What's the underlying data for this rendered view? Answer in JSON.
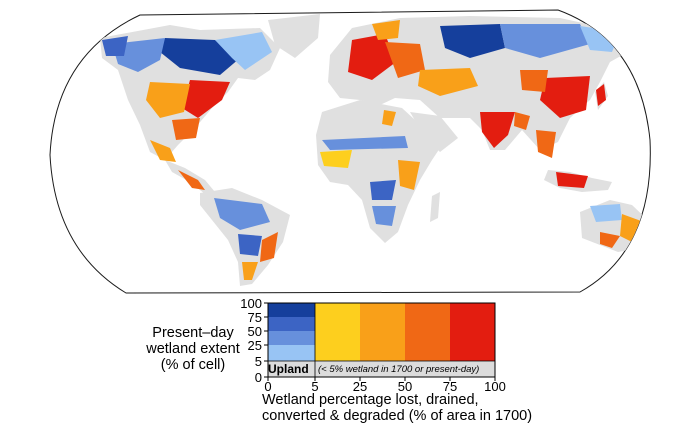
{
  "legend": {
    "y_title_lines": [
      "Present–day",
      "wetland extent",
      "(% of cell)"
    ],
    "y_ticks": [
      "100",
      "75",
      "50",
      "25",
      "5",
      "0"
    ],
    "x_ticks": [
      "0",
      "5",
      "25",
      "50",
      "75",
      "100"
    ],
    "x_title_lines": [
      "Wetland percentage lost, drained,",
      "converted & degraded  (% of area in 1700)"
    ],
    "upland_label": "Upland",
    "upland_note": "(< 5% wetland in 1700 or present-day)"
  },
  "colors": {
    "land": "#e0e0e0",
    "ocean": "#ffffff",
    "outline": "#1a1a1a",
    "extent_100": "#153f9c",
    "extent_75": "#3c64c4",
    "extent_50": "#6790dc",
    "extent_25": "#98c4f4",
    "loss_5_25": "#fdcf1e",
    "loss_25_50": "#f9a019",
    "loss_50_75": "#f06815",
    "loss_75_100": "#e31d10",
    "upland": "#dcdcdc"
  }
}
